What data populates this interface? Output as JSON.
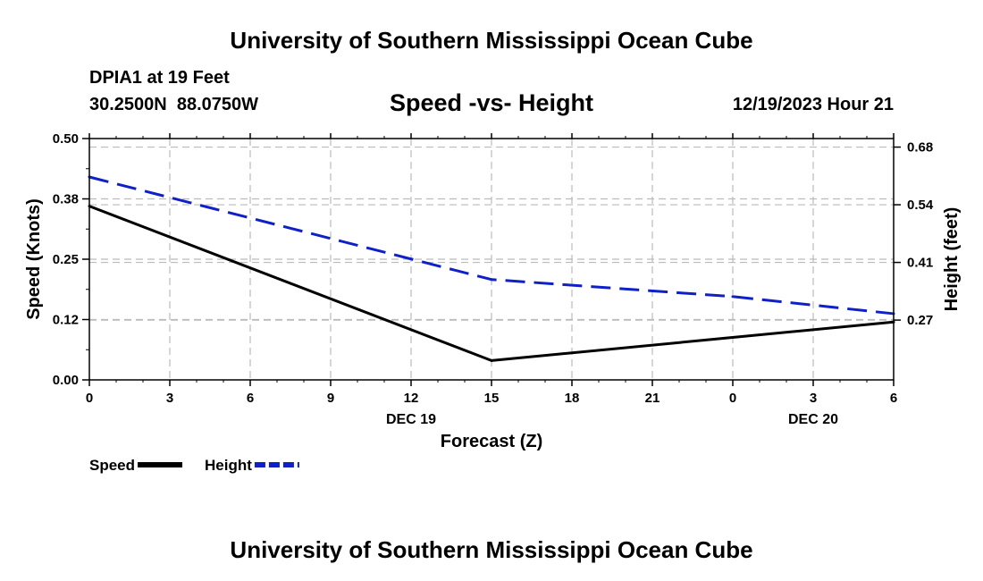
{
  "header": {
    "title": "University of Southern Mississippi Ocean Cube",
    "station": "DPIA1 at 19 Feet",
    "coords": "30.2500N  88.0750W",
    "date": "12/19/2023 Hour 21",
    "footer_title": "University of Southern Mississippi Ocean Cube"
  },
  "chart_data": {
    "type": "line",
    "title": "Speed -vs- Height",
    "xlabel": "Forecast (Z)",
    "ylabel": "Speed (Knots)",
    "ylabel_right": "Height (feet)",
    "x": [
      0,
      3,
      6,
      9,
      12,
      15,
      18,
      21,
      24,
      27,
      30
    ],
    "x_tick_labels": [
      "0",
      "3",
      "6",
      "9",
      "12",
      "15",
      "18",
      "21",
      "0",
      "3",
      "6"
    ],
    "date_labels": [
      {
        "x": 12,
        "label": "DEC 19"
      },
      {
        "x": 27,
        "label": "DEC 20"
      }
    ],
    "xlim": [
      0,
      30
    ],
    "ylim": [
      0,
      0.5
    ],
    "y_ticks": [
      0,
      0.125,
      0.25,
      0.375,
      0.5
    ],
    "y_tick_labels": [
      "0.00",
      "0.12",
      "0.25",
      "0.38",
      "0.50"
    ],
    "ylim_right": [
      0.135,
      0.7
    ],
    "y_ticks_right": [
      0.275,
      0.41,
      0.545,
      0.68
    ],
    "y_tick_labels_right": [
      "0.27",
      "0.41",
      "0.54",
      "0.68"
    ],
    "grid": true,
    "series": [
      {
        "name": "Speed",
        "axis": "left",
        "color": "#000000",
        "dash": "solid",
        "x": [
          0,
          15,
          30
        ],
        "values": [
          0.36,
          0.04,
          0.12
        ]
      },
      {
        "name": "Height",
        "axis": "right",
        "color": "#1020c8",
        "dash": "dashed",
        "x": [
          0,
          15,
          24,
          30
        ],
        "values": [
          0.61,
          0.37,
          0.33,
          0.29
        ]
      }
    ],
    "legend": [
      {
        "label": "Speed",
        "color": "#000000",
        "dash": "solid"
      },
      {
        "label": "Height",
        "color": "#1020c8",
        "dash": "dashed"
      }
    ]
  }
}
